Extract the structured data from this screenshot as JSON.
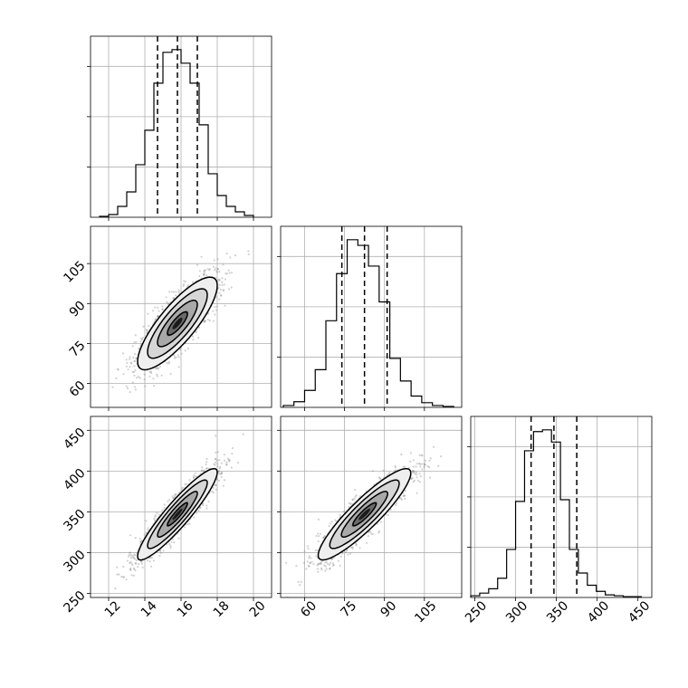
{
  "chart_data": {
    "type": "corner",
    "parameters": [
      {
        "range": [
          11,
          21
        ],
        "ticks": [
          "12",
          "14",
          "16",
          "18",
          "20"
        ],
        "quantiles": [
          14.7,
          15.8,
          16.9
        ],
        "hist_edges": [
          11.5,
          12.0,
          12.5,
          13.0,
          13.5,
          14.0,
          14.5,
          15.0,
          15.5,
          16.0,
          16.5,
          17.0,
          17.5,
          18.0,
          18.5,
          19.0,
          19.5,
          20.0
        ],
        "hist_counts": [
          1,
          3,
          12,
          28,
          58,
          96,
          148,
          182,
          185,
          170,
          148,
          102,
          48,
          24,
          12,
          6,
          2
        ]
      },
      {
        "range": [
          51,
          119
        ],
        "ticks": [
          "60",
          "75",
          "90",
          "105"
        ],
        "quantiles": [
          74,
          82.5,
          91
        ],
        "hist_edges": [
          52,
          56,
          60,
          64,
          68,
          72,
          76,
          80,
          84,
          88,
          92,
          96,
          100,
          104,
          108,
          112,
          116
        ],
        "hist_counts": [
          2,
          6,
          18,
          40,
          92,
          142,
          178,
          172,
          150,
          112,
          52,
          28,
          12,
          5,
          2,
          1
        ]
      },
      {
        "range": [
          245,
          467
        ],
        "ticks": [
          "250",
          "300",
          "350",
          "400",
          "450"
        ],
        "quantiles": [
          319,
          347,
          375
        ],
        "hist_edges": [
          245,
          256,
          267,
          278,
          289,
          300,
          311,
          322,
          333,
          344,
          355,
          366,
          377,
          388,
          399,
          410,
          421,
          432,
          443,
          454
        ],
        "hist_counts": [
          2,
          5,
          10,
          22,
          55,
          110,
          168,
          190,
          192,
          178,
          112,
          55,
          28,
          14,
          7,
          3,
          2,
          1,
          1
        ]
      }
    ],
    "pairs": [
      {
        "x": 0,
        "y": 1,
        "center": [
          15.8,
          82.5
        ],
        "sigma": [
          1.1,
          8.7
        ],
        "rho": 0.82
      },
      {
        "x": 0,
        "y": 2,
        "center": [
          15.8,
          347
        ],
        "sigma": [
          1.1,
          28
        ],
        "rho": 0.92
      },
      {
        "x": 1,
        "y": 2,
        "center": [
          82.5,
          347
        ],
        "sigma": [
          8.7,
          28
        ],
        "rho": 0.9
      }
    ],
    "grid": true,
    "colors": {
      "line": "#000000",
      "grid": "#b0b0b0",
      "scatter": "#7f7f7f"
    }
  }
}
